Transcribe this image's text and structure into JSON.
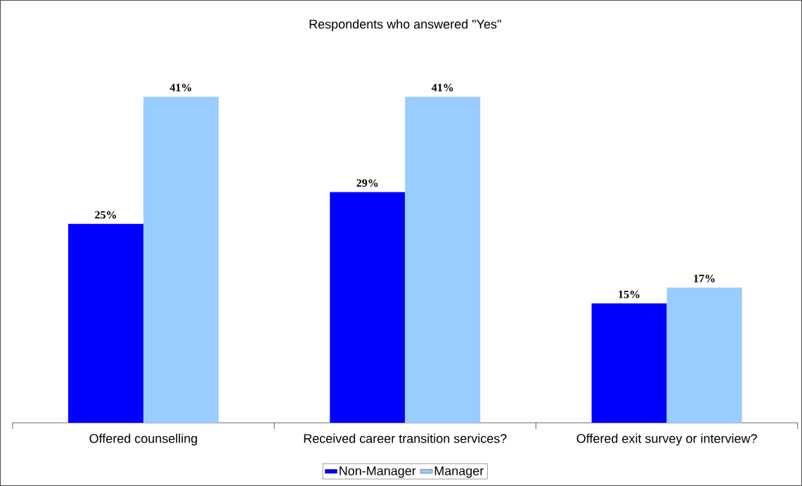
{
  "chart_data": {
    "type": "bar",
    "title": "Respondents who answered \"Yes\"",
    "categories": [
      "Offered counselling",
      "Received career transition services?",
      "Offered exit survey or interview?"
    ],
    "series": [
      {
        "name": "Non-Manager",
        "color": "#0000ff",
        "values": [
          25,
          29,
          15
        ],
        "value_labels": [
          "25%",
          "29%",
          "15%"
        ]
      },
      {
        "name": "Manager",
        "color": "#99ccff",
        "values": [
          41,
          41,
          17
        ],
        "value_labels": [
          "41%",
          "41%",
          "17%"
        ]
      }
    ],
    "legend": "bottom"
  }
}
